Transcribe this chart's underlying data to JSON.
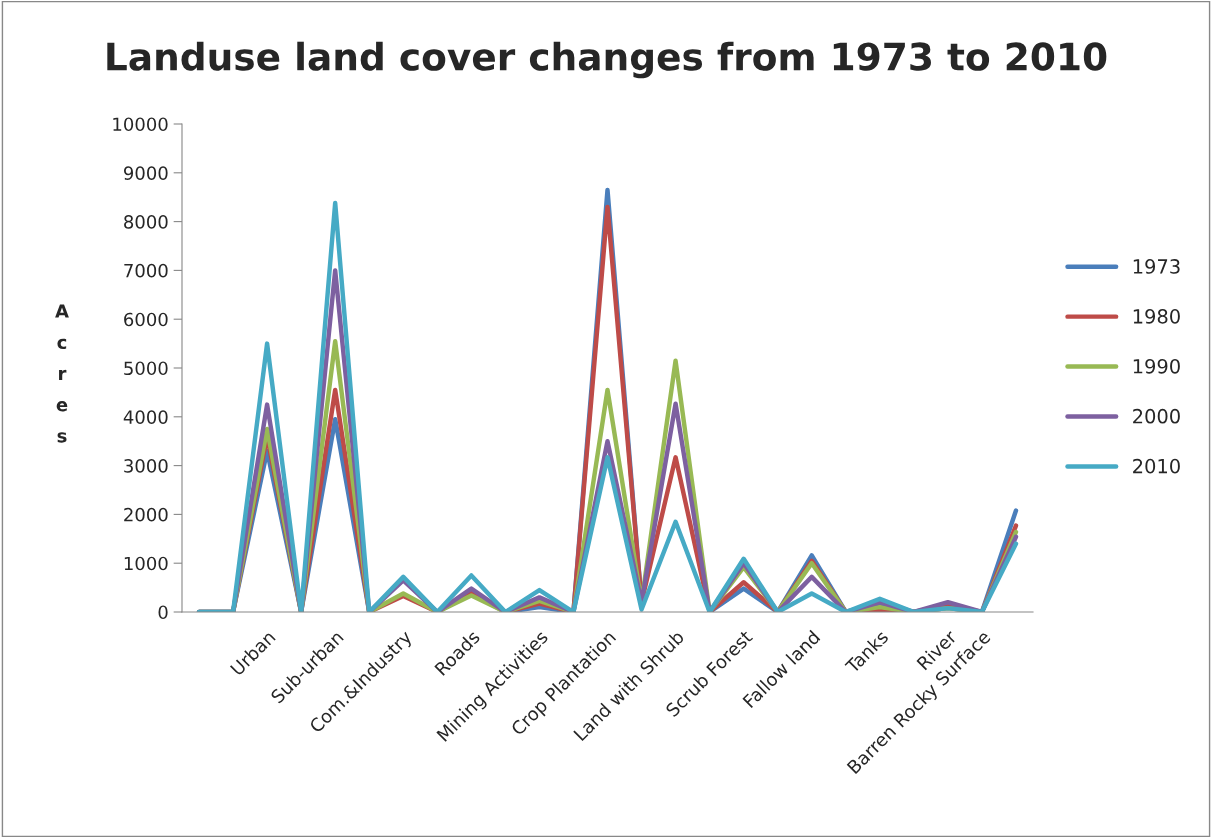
{
  "chart_data": {
    "type": "line",
    "title": "Landuse land cover changes from 1973 to 2010",
    "ylabel": "Acres",
    "categories": [
      null,
      null,
      "Urban",
      null,
      "Sub-urban",
      null,
      "Com.&Industry",
      null,
      "Roads",
      null,
      "Mining Activities",
      null,
      "Crop Plantation",
      null,
      "Land with Shrub",
      null,
      "Scrub Forest",
      null,
      "Fallow land",
      null,
      "Tanks",
      null,
      "River",
      "Barren Rocky Surface",
      null
    ],
    "series": [
      {
        "name": "1973",
        "color": "#4a7ebb",
        "values": [
          0,
          0,
          3300,
          0,
          3950,
          0,
          null,
          0,
          380,
          0,
          100,
          0,
          8650,
          200,
          null,
          0,
          480,
          0,
          1160,
          0,
          150,
          0,
          80,
          0,
          2080
        ]
      },
      {
        "name": "1980",
        "color": "#be4b48",
        "values": [
          0,
          0,
          3600,
          0,
          4550,
          0,
          330,
          0,
          400,
          0,
          170,
          0,
          8300,
          200,
          3170,
          0,
          610,
          0,
          1050,
          0,
          50,
          0,
          150,
          0,
          1770
        ]
      },
      {
        "name": "1990",
        "color": "#98b954",
        "values": [
          0,
          0,
          3750,
          0,
          5550,
          0,
          380,
          0,
          340,
          0,
          230,
          0,
          4550,
          200,
          5150,
          0,
          920,
          0,
          1000,
          0,
          100,
          0,
          80,
          0,
          1640
        ]
      },
      {
        "name": "2000",
        "color": "#7d60a0",
        "values": [
          0,
          0,
          4250,
          0,
          7000,
          0,
          650,
          0,
          480,
          0,
          300,
          0,
          3500,
          200,
          4270,
          0,
          1000,
          0,
          720,
          0,
          200,
          0,
          200,
          0,
          1540
        ]
      },
      {
        "name": "2010",
        "color": "#46aac5",
        "values": [
          0,
          0,
          5500,
          0,
          8380,
          0,
          720,
          0,
          750,
          0,
          450,
          0,
          3170,
          50,
          1850,
          0,
          1090,
          0,
          380,
          0,
          270,
          0,
          80,
          0,
          1400
        ]
      }
    ],
    "ylim": [
      0,
      10000
    ],
    "yticks": [
      0,
      1000,
      2000,
      3000,
      4000,
      5000,
      6000,
      7000,
      8000,
      9000,
      10000
    ],
    "grid": false,
    "legend": "right",
    "marker": "none",
    "line_style": "solid"
  }
}
